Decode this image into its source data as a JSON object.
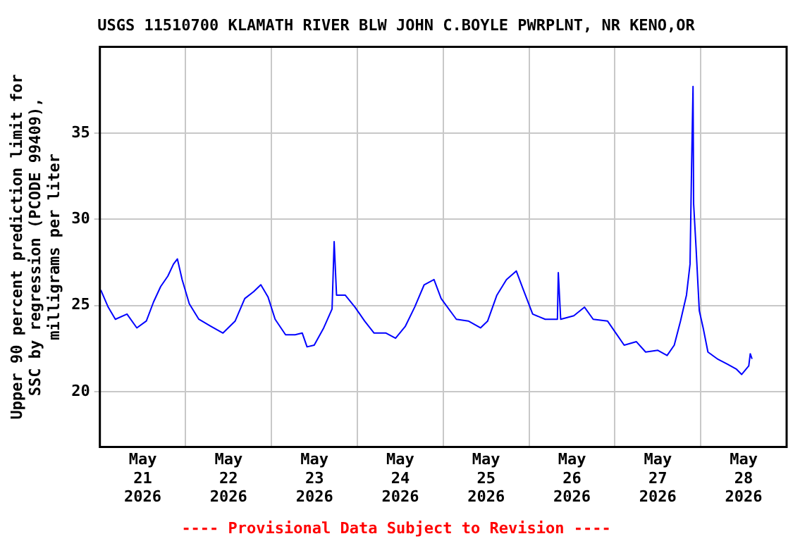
{
  "chart_data": {
    "type": "line",
    "title": "USGS 11510700 KLAMATH RIVER BLW JOHN C.BOYLE PWRPLNT, NR KENO,OR",
    "ylabel": "Upper 90 percent prediction limit for SSC by regression (PCODE 99409), milligrams per liter",
    "annotations": [
      "---- Provisional Data Subject to Revision ----"
    ],
    "x": [
      "2026-05-21T00:15",
      "2026-05-21T02:20",
      "2026-05-21T04:20",
      "2026-05-21T07:35",
      "2026-05-21T10:20",
      "2026-05-21T13:00",
      "2026-05-21T15:00",
      "2026-05-21T17:00",
      "2026-05-21T19:00",
      "2026-05-21T20:35",
      "2026-05-21T21:40",
      "2026-05-21T23:00",
      "2026-05-22T01:00",
      "2026-05-22T03:40",
      "2026-05-22T07:00",
      "2026-05-22T10:25",
      "2026-05-22T13:50",
      "2026-05-22T16:30",
      "2026-05-22T19:00",
      "2026-05-22T21:00",
      "2026-05-22T23:00",
      "2026-05-23T01:00",
      "2026-05-23T03:55",
      "2026-05-23T06:35",
      "2026-05-23T08:35",
      "2026-05-23T09:55",
      "2026-05-23T11:55",
      "2026-05-23T14:35",
      "2026-05-23T16:55",
      "2026-05-23T17:30",
      "2026-05-23T18:10",
      "2026-05-23T20:35",
      "2026-05-23T23:20",
      "2026-05-24T02:00",
      "2026-05-24T04:40",
      "2026-05-24T08:00",
      "2026-05-24T10:40",
      "2026-05-24T13:25",
      "2026-05-24T16:00",
      "2026-05-24T18:40",
      "2026-05-24T21:25",
      "2026-05-24T23:25",
      "2026-05-25T03:40",
      "2026-05-25T07:00",
      "2026-05-25T10:25",
      "2026-05-25T12:25",
      "2026-05-25T15:00",
      "2026-05-25T17:40",
      "2026-05-25T20:25",
      "2026-05-25T22:25",
      "2026-05-26T01:00",
      "2026-05-26T04:30",
      "2026-05-26T07:55",
      "2026-05-26T08:10",
      "2026-05-26T08:50",
      "2026-05-26T12:30",
      "2026-05-26T15:30",
      "2026-05-26T17:55",
      "2026-05-26T21:55",
      "2026-05-26T23:55",
      "2026-05-27T02:35",
      "2026-05-27T06:00",
      "2026-05-27T08:35",
      "2026-05-27T12:00",
      "2026-05-27T14:35",
      "2026-05-27T16:35",
      "2026-05-27T18:20",
      "2026-05-27T20:00",
      "2026-05-27T21:00",
      "2026-05-27T21:25",
      "2026-05-27T21:50",
      "2026-05-27T22:00",
      "2026-05-27T22:40",
      "2026-05-27T23:35",
      "2026-05-28T00:40",
      "2026-05-28T02:00",
      "2026-05-28T04:40",
      "2026-05-28T07:25",
      "2026-05-28T10:00",
      "2026-05-28T11:25",
      "2026-05-28T13:25",
      "2026-05-28T13:50",
      "2026-05-28T14:20"
    ],
    "series": [
      {
        "color": "#0000ff",
        "values": [
          25.9,
          24.9,
          24.2,
          24.5,
          23.7,
          24.1,
          25.2,
          26.1,
          26.7,
          27.4,
          27.7,
          26.5,
          25.1,
          24.2,
          23.8,
          23.4,
          24.1,
          25.4,
          25.8,
          26.2,
          25.5,
          24.2,
          23.3,
          23.3,
          23.4,
          22.6,
          22.7,
          23.7,
          24.8,
          28.7,
          25.6,
          25.6,
          24.9,
          24.1,
          23.4,
          23.4,
          23.1,
          23.8,
          24.9,
          26.2,
          26.5,
          25.4,
          24.2,
          24.1,
          23.7,
          24.1,
          25.6,
          26.5,
          27.0,
          25.9,
          24.5,
          24.2,
          24.2,
          26.9,
          24.2,
          24.4,
          24.9,
          24.2,
          24.1,
          23.5,
          22.7,
          22.9,
          22.3,
          22.4,
          22.1,
          22.7,
          24.1,
          25.6,
          27.4,
          32.9,
          37.7,
          30.9,
          28.4,
          24.7,
          23.7,
          22.3,
          21.9,
          21.6,
          21.3,
          21.0,
          21.5,
          22.2,
          21.9
        ]
      }
    ],
    "xlim": [
      "2026-05-21T00:00",
      "2026-05-29T00:00"
    ],
    "xticks": [
      {
        "value": "2026-05-21T00:00",
        "label": null
      },
      {
        "value": "2026-05-21T12:00",
        "label": "May\n21\n2026"
      },
      {
        "value": "2026-05-22T00:00",
        "label": null
      },
      {
        "value": "2026-05-22T12:00",
        "label": "May\n22\n2026"
      },
      {
        "value": "2026-05-23T00:00",
        "label": null
      },
      {
        "value": "2026-05-23T12:00",
        "label": "May\n23\n2026"
      },
      {
        "value": "2026-05-24T00:00",
        "label": null
      },
      {
        "value": "2026-05-24T12:00",
        "label": "May\n24\n2026"
      },
      {
        "value": "2026-05-25T00:00",
        "label": null
      },
      {
        "value": "2026-05-25T12:00",
        "label": "May\n25\n2026"
      },
      {
        "value": "2026-05-26T00:00",
        "label": null
      },
      {
        "value": "2026-05-26T12:00",
        "label": "May\n26\n2026"
      },
      {
        "value": "2026-05-27T00:00",
        "label": null
      },
      {
        "value": "2026-05-27T12:00",
        "label": "May\n27\n2026"
      },
      {
        "value": "2026-05-28T00:00",
        "label": null
      },
      {
        "value": "2026-05-28T12:00",
        "label": "May\n28\n2026"
      }
    ],
    "ylim": [
      16.8,
      40
    ],
    "yticks": [
      20,
      25,
      30,
      35
    ],
    "grid": true,
    "legend": false,
    "marker": "none",
    "line_style": "solid"
  }
}
